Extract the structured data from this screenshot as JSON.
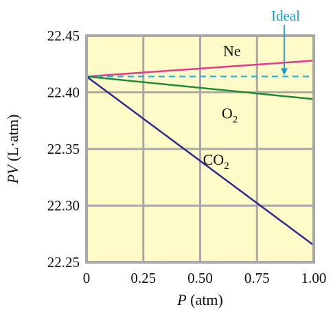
{
  "chart_data": {
    "type": "line",
    "xlabel": {
      "italic": "P",
      "rest": " (atm)"
    },
    "ylabel": {
      "italic": "PV",
      "rest": " (L·atm)"
    },
    "xlim": [
      0,
      1.0
    ],
    "ylim": [
      22.25,
      22.45
    ],
    "x_ticks": [
      0,
      0.25,
      0.5,
      0.75,
      1.0
    ],
    "x_tick_labels": [
      "0",
      "0.25",
      "0.50",
      "0.75",
      "1.00"
    ],
    "y_ticks": [
      22.25,
      22.3,
      22.35,
      22.4,
      22.45
    ],
    "y_tick_labels": [
      "22.25",
      "22.30",
      "22.35",
      "22.40",
      "22.45"
    ],
    "grid": true,
    "colors": {
      "plot_bg": "#fffbc8",
      "grid": "#a8a8a8",
      "frame": "#a8a8a8",
      "ideal": "#2bb3d6",
      "ideal_label": "#1a9cc4"
    },
    "series": [
      {
        "name": "Ne",
        "name_sub": "",
        "color": "#e8368a",
        "dash": false,
        "x": [
          0,
          1.0
        ],
        "y": [
          22.414,
          22.428
        ]
      },
      {
        "name": "Ideal",
        "name_sub": "",
        "color": "#2bb3d6",
        "dash": true,
        "x": [
          0,
          1.0
        ],
        "y": [
          22.414,
          22.414
        ]
      },
      {
        "name": "O",
        "name_sub": "2",
        "color": "#1f8a3a",
        "dash": false,
        "x": [
          0,
          1.0
        ],
        "y": [
          22.414,
          22.394
        ]
      },
      {
        "name": "CO",
        "name_sub": "2",
        "color": "#2b2a8c",
        "dash": false,
        "x": [
          0,
          1.0
        ],
        "y": [
          22.414,
          22.265
        ]
      }
    ],
    "annotations": [
      {
        "text": "Ideal",
        "arrow_to_series": "Ideal",
        "arrow_x": 0.87
      }
    ]
  }
}
